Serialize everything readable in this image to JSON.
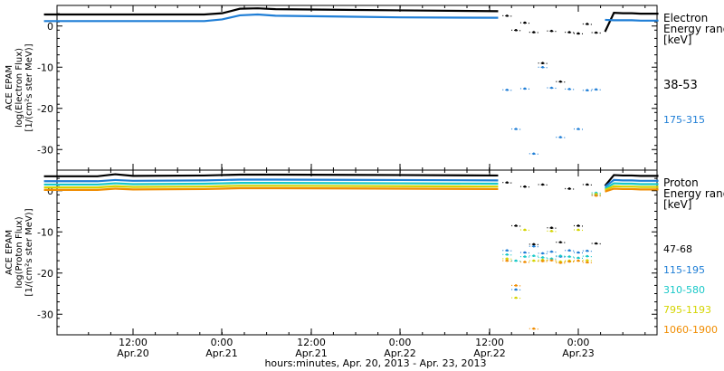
{
  "chart_data": [
    {
      "type": "scatter",
      "panel": "electron",
      "ylabel_lines": [
        "ACE EPAM",
        "log(Electron Flux)",
        "[1/(cm²s ster MeV)]"
      ],
      "ylim": [
        -35,
        5
      ],
      "yticks": [
        0,
        -10,
        -20,
        -30
      ],
      "legend_title": [
        "Electron",
        "Energy range",
        "[keV]"
      ],
      "legend_placement": "right",
      "series": [
        {
          "name": "38-53",
          "color": "#000000",
          "x": [
            0.0,
            0.9,
            1.0,
            1.1,
            1.2,
            1.3,
            2.0,
            2.55,
            2.6,
            2.65,
            2.7,
            2.75,
            2.8,
            2.85,
            2.9,
            2.95,
            3.0,
            3.05,
            3.1,
            3.15,
            3.2,
            3.25,
            3.3,
            3.35,
            3.4,
            3.45
          ],
          "y": [
            2.8,
            2.8,
            3.1,
            4.2,
            4.3,
            4.1,
            3.8,
            3.6,
            2.5,
            -1.0,
            0.8,
            -1.5,
            -9.0,
            -1.2,
            -13.5,
            -1.5,
            -1.8,
            0.5,
            -1.6,
            -1.4,
            3.2,
            3.1,
            3.1,
            3.0,
            3.0,
            3.0
          ]
        },
        {
          "name": "175-315",
          "color": "#1f7ed6",
          "x": [
            0.0,
            0.9,
            1.0,
            1.1,
            1.2,
            1.3,
            2.0,
            2.55,
            2.6,
            2.65,
            2.7,
            2.75,
            2.8,
            2.85,
            2.9,
            2.95,
            3.0,
            3.05,
            3.1,
            3.15,
            3.2,
            3.25,
            3.3,
            3.35,
            3.4,
            3.45
          ],
          "y": [
            1.2,
            1.2,
            1.6,
            2.6,
            2.8,
            2.5,
            2.1,
            2.0,
            -15.5,
            -25.0,
            -15.2,
            -31.0,
            -10.0,
            -15.0,
            -27.0,
            -15.3,
            -25.0,
            -15.6,
            -15.4,
            1.5,
            1.4,
            1.4,
            1.4,
            1.3,
            1.3,
            1.3
          ]
        }
      ]
    },
    {
      "type": "scatter",
      "panel": "proton",
      "ylabel_lines": [
        "ACE EPAM",
        "log(Proton Flux)",
        "[1/(cm²s ster MeV)]"
      ],
      "ylim": [
        -35,
        5
      ],
      "yticks": [
        0,
        -10,
        -20,
        -30
      ],
      "xlabel": "hours:minutes, Apr. 20, 2013 - Apr. 23, 2013",
      "xticks": [
        {
          "time": "12:00",
          "date": "Apr.20"
        },
        {
          "time": "0:00",
          "date": "Apr.21"
        },
        {
          "time": "12:00",
          "date": "Apr.21"
        },
        {
          "time": "0:00",
          "date": "Apr.22"
        },
        {
          "time": "12:00",
          "date": "Apr.22"
        },
        {
          "time": "0:00",
          "date": "Apr.23"
        }
      ],
      "legend_title": [
        "Proton",
        "Energy range",
        "[keV]"
      ],
      "legend_placement": "right",
      "series": [
        {
          "name": "47-68",
          "color": "#000000",
          "x": [
            0.0,
            0.3,
            0.4,
            0.5,
            0.9,
            1.0,
            1.1,
            1.2,
            1.3,
            2.0,
            2.55,
            2.6,
            2.65,
            2.7,
            2.75,
            2.8,
            2.85,
            2.9,
            2.95,
            3.0,
            3.05,
            3.1,
            3.15,
            3.2,
            3.25,
            3.3,
            3.35,
            3.4,
            3.45
          ],
          "y": [
            3.5,
            3.5,
            4.0,
            3.6,
            3.7,
            3.8,
            3.9,
            3.9,
            3.9,
            3.8,
            3.7,
            2.0,
            -8.5,
            1.0,
            -13.0,
            1.5,
            -9.0,
            -12.5,
            0.5,
            -8.5,
            1.5,
            -12.8,
            1.2,
            3.8,
            3.7,
            3.7,
            3.6,
            3.6,
            3.6
          ]
        },
        {
          "name": "115-195",
          "color": "#1f7ed6",
          "x": [
            0.0,
            0.3,
            0.4,
            0.5,
            0.9,
            1.0,
            1.1,
            1.2,
            1.3,
            2.0,
            2.55,
            2.6,
            2.65,
            2.7,
            2.75,
            2.8,
            2.85,
            2.9,
            2.95,
            3.0,
            3.05,
            3.1,
            3.15,
            3.2,
            3.25,
            3.3,
            3.35,
            3.4,
            3.45
          ],
          "y": [
            2.3,
            2.3,
            2.6,
            2.4,
            2.5,
            2.6,
            2.7,
            2.7,
            2.7,
            2.6,
            2.5,
            -14.5,
            -24.0,
            -15.0,
            -13.5,
            -15.2,
            -14.8,
            -16.0,
            -14.5,
            -15.0,
            -14.6,
            -1.0,
            1.0,
            2.6,
            2.5,
            2.5,
            2.4,
            2.4,
            2.4
          ]
        },
        {
          "name": "310-580",
          "color": "#18c8c8",
          "x": [
            0.0,
            0.3,
            0.4,
            0.5,
            0.9,
            1.0,
            1.1,
            1.2,
            1.3,
            2.0,
            2.55,
            2.6,
            2.65,
            2.7,
            2.75,
            2.8,
            2.85,
            2.9,
            2.95,
            3.0,
            3.05,
            3.1,
            3.15,
            3.2,
            3.25,
            3.3,
            3.35,
            3.4,
            3.45
          ],
          "y": [
            1.5,
            1.5,
            1.8,
            1.6,
            1.7,
            1.8,
            1.9,
            1.9,
            1.9,
            1.8,
            1.7,
            -15.5,
            -17.0,
            -16.0,
            -15.8,
            -16.2,
            -16.5,
            -15.8,
            -16.0,
            -16.3,
            -15.9,
            -0.5,
            0.5,
            1.8,
            1.7,
            1.7,
            1.6,
            1.6,
            1.6
          ]
        },
        {
          "name": "795-1193",
          "color": "#d4d400",
          "x": [
            0.0,
            0.3,
            0.4,
            0.5,
            0.9,
            1.0,
            1.1,
            1.2,
            1.3,
            2.0,
            2.55,
            2.6,
            2.65,
            2.7,
            2.75,
            2.8,
            2.85,
            2.9,
            2.95,
            3.0,
            3.05,
            3.1,
            3.15,
            3.2,
            3.25,
            3.3,
            3.35,
            3.4,
            3.45
          ],
          "y": [
            0.8,
            0.8,
            1.1,
            0.9,
            1.0,
            1.1,
            1.2,
            1.2,
            1.2,
            1.1,
            1.0,
            -16.5,
            -26.0,
            -9.5,
            -17.0,
            -16.8,
            -9.8,
            -17.2,
            -17.0,
            -9.5,
            -16.9,
            -0.8,
            0.2,
            1.1,
            1.0,
            1.0,
            0.9,
            0.9,
            0.9
          ]
        },
        {
          "name": "1060-1900",
          "color": "#f08c00",
          "x": [
            0.0,
            0.3,
            0.4,
            0.5,
            0.9,
            1.0,
            1.1,
            1.2,
            1.3,
            2.0,
            2.55,
            2.6,
            2.65,
            2.7,
            2.75,
            2.8,
            2.85,
            2.9,
            2.95,
            3.0,
            3.05,
            3.1,
            3.15,
            3.2,
            3.25,
            3.3,
            3.35,
            3.4,
            3.45
          ],
          "y": [
            0.2,
            0.2,
            0.5,
            0.3,
            0.4,
            0.5,
            0.6,
            0.6,
            0.6,
            0.5,
            0.4,
            -17.0,
            -23.0,
            -17.3,
            -33.5,
            -17.1,
            -16.9,
            -17.5,
            -17.2,
            -17.0,
            -17.4,
            -1.2,
            -0.2,
            0.5,
            0.4,
            0.4,
            0.3,
            0.3,
            0.3
          ]
        }
      ]
    }
  ]
}
